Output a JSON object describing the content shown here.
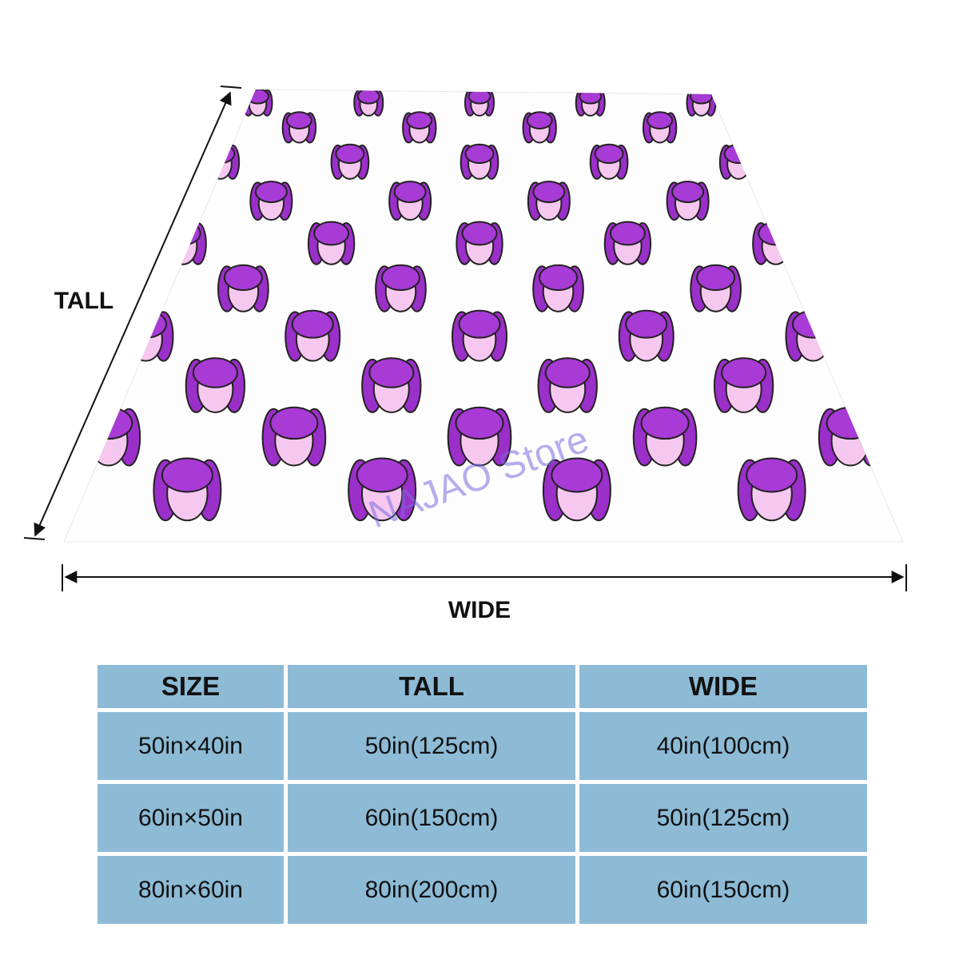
{
  "diagram": {
    "tall_label": "TALL",
    "wide_label": "WIDE",
    "watermark": "NAJAO Store"
  },
  "table": {
    "header": [
      "SIZE",
      "TALL",
      "WIDE"
    ],
    "rows": [
      [
        "50in×40in",
        "50in(125cm)",
        "40in(100cm)"
      ],
      [
        "60in×50in",
        "60in(150cm)",
        "50in(125cm)"
      ],
      [
        "80in×60in",
        "80in(200cm)",
        "60in(150cm)"
      ]
    ]
  }
}
